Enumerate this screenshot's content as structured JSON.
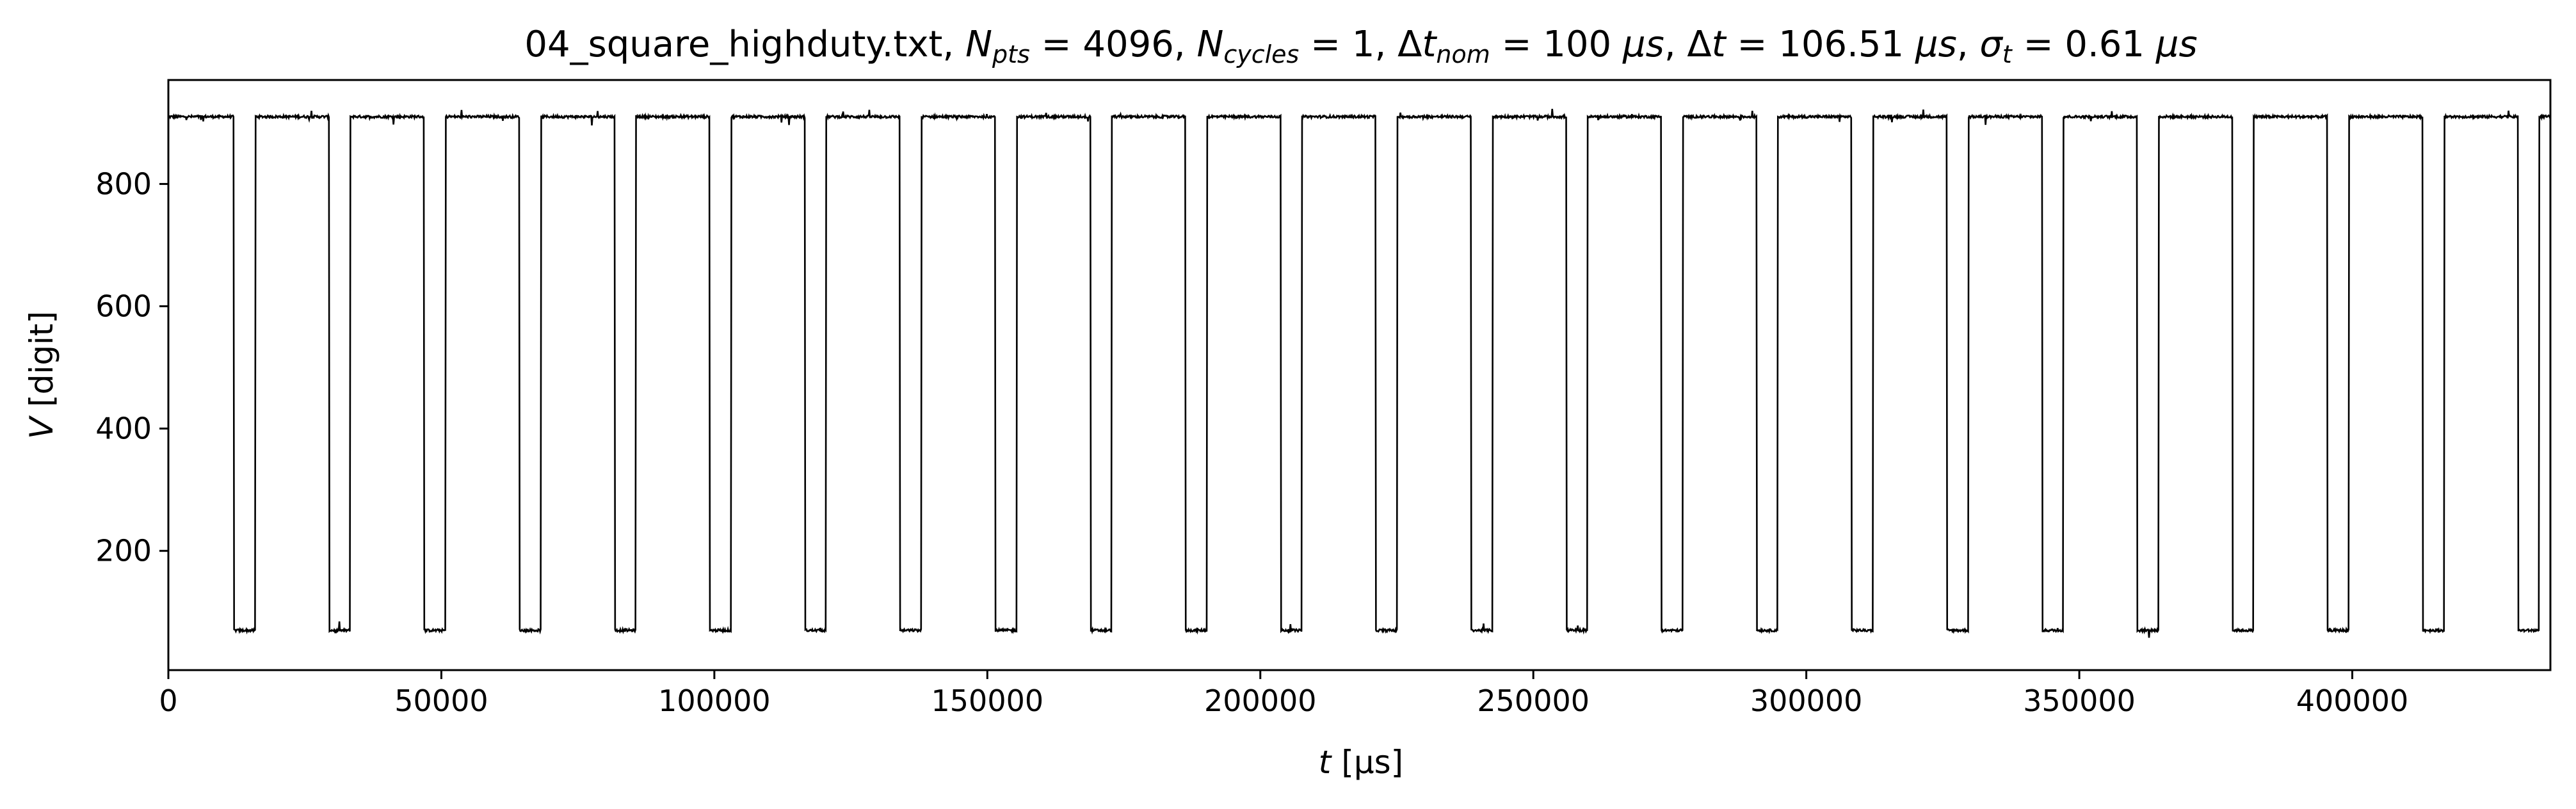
{
  "chart_data": {
    "type": "line",
    "title_parts": {
      "file": "04_square_highduty.txt",
      "npts_sub": "pts",
      "npts_value": "4096",
      "ncycles_sub": "cycles",
      "ncycles_value": "1",
      "dtnom_sub": "nom",
      "dtnom_value": "100",
      "dt_value": "106.51",
      "sigma_sub": "t",
      "sigma_value": "0.61",
      "unit": "μs"
    },
    "xlabel_var": "t",
    "xlabel_unit": "[μs]",
    "ylabel_var": "V",
    "ylabel_unit": "[digit]",
    "xlim": [
      0,
      436285
    ],
    "ylim": [
      5,
      970
    ],
    "xticks": [
      0,
      50000,
      100000,
      150000,
      200000,
      250000,
      300000,
      350000,
      400000
    ],
    "xtick_labels": [
      "0",
      "50000",
      "100000",
      "150000",
      "200000",
      "250000",
      "300000",
      "350000",
      "400000"
    ],
    "yticks": [
      200,
      400,
      600,
      800
    ],
    "ytick_labels": [
      "200",
      "400",
      "600",
      "800"
    ],
    "grid": false,
    "legend": "none",
    "line_color": "#000000",
    "signal": {
      "high_level": 910,
      "low_level": 70,
      "period_us": 17430,
      "first_fall_us": 12000,
      "low_duration_us": 3900,
      "n_points": 4096
    }
  }
}
